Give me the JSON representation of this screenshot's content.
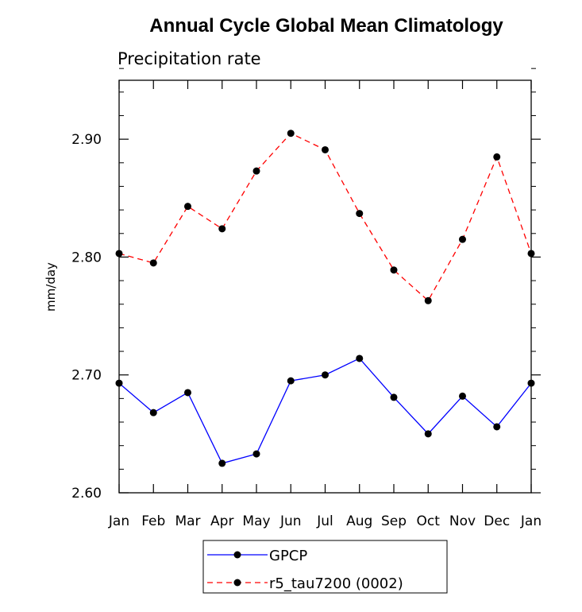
{
  "chart_data": {
    "type": "line",
    "title": "Annual Cycle Global Mean Climatology",
    "subtitle": "Precipitation rate",
    "xlabel": "",
    "ylabel": "mm/day",
    "categories": [
      "Jan",
      "Feb",
      "Mar",
      "Apr",
      "May",
      "Jun",
      "Jul",
      "Aug",
      "Sep",
      "Oct",
      "Nov",
      "Dec",
      "Jan"
    ],
    "ylim": [
      2.6,
      2.95
    ],
    "yticks": [
      2.6,
      2.7,
      2.8,
      2.9
    ],
    "ytick_labels": [
      "2.60",
      "2.70",
      "2.80",
      "2.90"
    ],
    "series": [
      {
        "name": "GPCP",
        "color": "#0000ff",
        "dash": "solid",
        "values": [
          2.693,
          2.668,
          2.685,
          2.625,
          2.633,
          2.695,
          2.7,
          2.714,
          2.681,
          2.65,
          2.682,
          2.656,
          2.693
        ]
      },
      {
        "name": "r5_tau7200 (0002)",
        "color": "#ff0000",
        "dash": "dashed",
        "values": [
          2.803,
          2.795,
          2.843,
          2.824,
          2.873,
          2.905,
          2.891,
          2.837,
          2.789,
          2.763,
          2.815,
          2.885,
          2.803
        ]
      }
    ],
    "grid": false,
    "legend_position": "bottom-center"
  }
}
